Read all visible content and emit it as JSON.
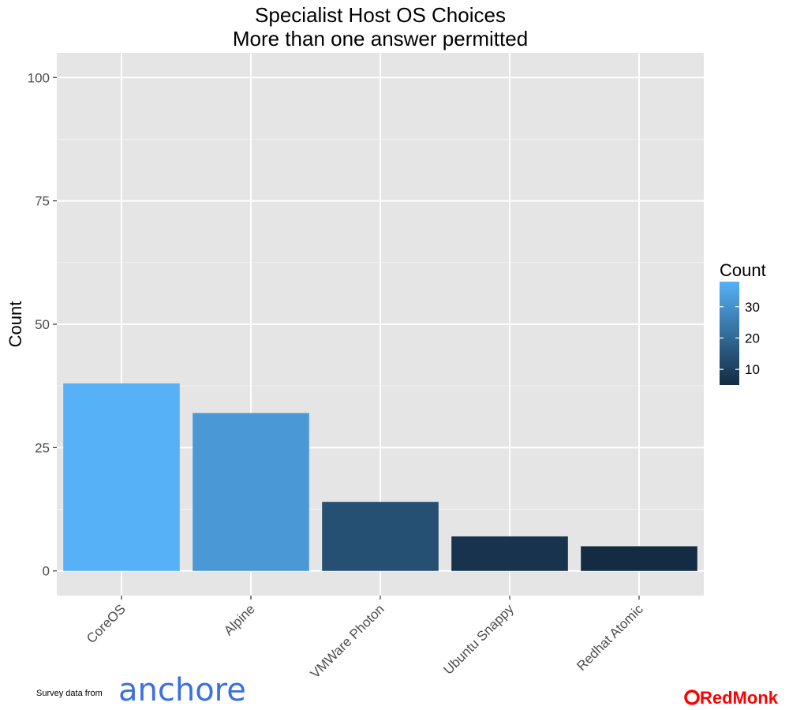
{
  "chart_data": {
    "type": "bar",
    "title": "Specialist Host OS Choices",
    "subtitle": "More than one answer permitted",
    "categories": [
      "CoreOS",
      "Alpine",
      "VMWare Photon",
      "Ubuntu Snappy",
      "Redhat Atomic"
    ],
    "values": [
      38,
      32,
      14,
      7,
      5
    ],
    "xlabel": "",
    "ylabel": "Count",
    "ylim": [
      -5,
      105
    ],
    "yticks": [
      0,
      25,
      50,
      75,
      100
    ],
    "grid": true,
    "panel_background": "#e5e5e5",
    "grid_color": "#ffffff",
    "color_scale": {
      "low": "#132b43",
      "high": "#56b1f7",
      "min": 5,
      "max": 38
    },
    "legend": {
      "title": "Count",
      "position": "right",
      "ticks": [
        30,
        20,
        10
      ]
    }
  },
  "footer": {
    "source_label": "Survey data from",
    "source_logo": "anchore",
    "brand_logo": "RedMonk"
  }
}
